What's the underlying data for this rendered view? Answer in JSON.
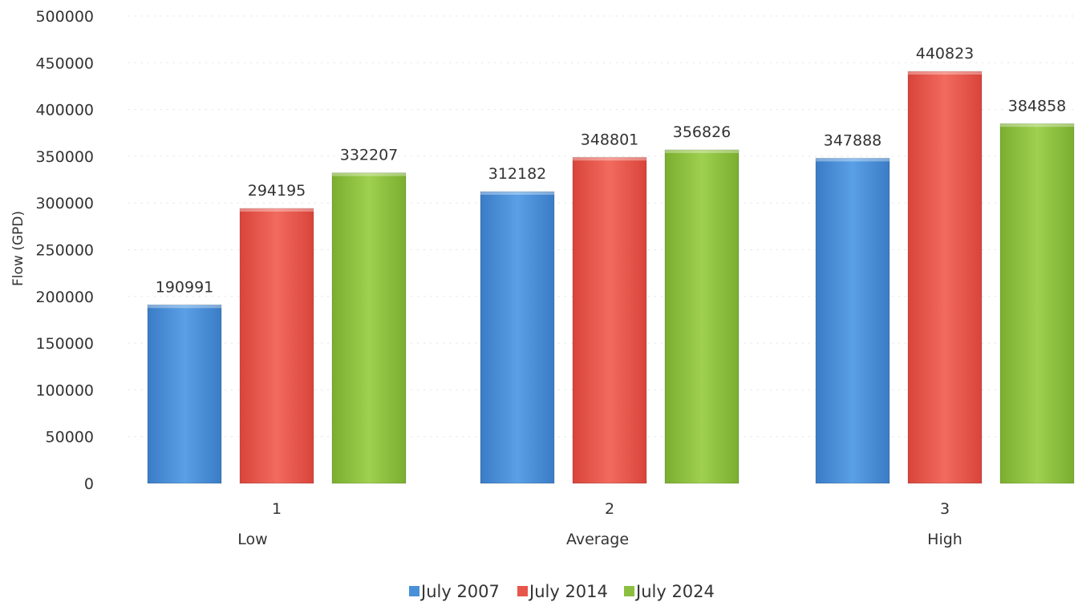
{
  "chart_data": {
    "type": "bar",
    "ylabel": "Flow (GPD)",
    "ylim": [
      0,
      500000
    ],
    "yticks": [
      0,
      50000,
      100000,
      150000,
      200000,
      250000,
      300000,
      350000,
      400000,
      450000,
      500000
    ],
    "categories": [
      "1",
      "2",
      "3"
    ],
    "category_names": [
      "Low",
      "Average",
      "High"
    ],
    "series": [
      {
        "name": "July 2007",
        "color": "#4a90d9",
        "values": [
          190991,
          312182,
          347888
        ]
      },
      {
        "name": "July 2014",
        "color": "#e8554a",
        "values": [
          294195,
          348801,
          440823
        ]
      },
      {
        "name": "July 2024",
        "color": "#8cbf3f",
        "values": [
          332207,
          356826,
          384858
        ]
      }
    ],
    "grid": true,
    "legend": "bottom"
  }
}
